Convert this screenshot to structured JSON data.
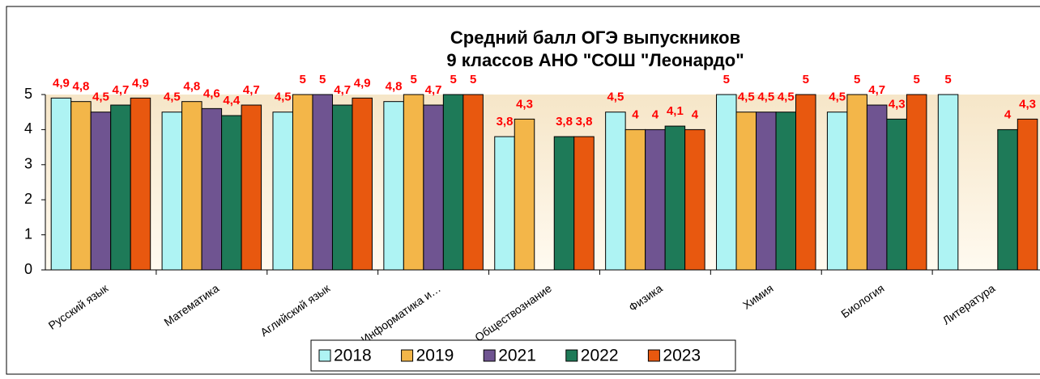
{
  "chart_data": {
    "type": "bar",
    "title": [
      "Средний балл ОГЭ выпускников",
      "9 классов АНО \"СОШ \"Леонардо\""
    ],
    "categories": [
      "Русский язык",
      "Математика",
      "Аглийский язык",
      "Информатика и…",
      "Обществознание",
      "Физика",
      "Химия",
      "Биология",
      "Литература"
    ],
    "series": [
      {
        "name": "2018",
        "color": "#aef3f3",
        "values": [
          4.9,
          4.5,
          4.5,
          4.8,
          3.8,
          4.5,
          5,
          4.5,
          5
        ],
        "value_labels": [
          "4,9",
          "4,5",
          "4,5",
          "4,8",
          "3,8",
          "4,5",
          "5",
          "4,5",
          "5"
        ]
      },
      {
        "name": "2019",
        "color": "#f3b649",
        "values": [
          4.8,
          4.8,
          5,
          5,
          4.3,
          4,
          4.5,
          5,
          null
        ],
        "value_labels": [
          "4,8",
          "4,8",
          "5",
          "5",
          "4,3",
          "4",
          "4,5",
          "5",
          null
        ]
      },
      {
        "name": "2021",
        "color": "#6f5491",
        "values": [
          4.5,
          4.6,
          5,
          4.7,
          null,
          4,
          4.5,
          4.7,
          null
        ],
        "value_labels": [
          "4,5",
          "4,6",
          "5",
          "4,7",
          null,
          "4",
          "4,5",
          "4,7",
          null
        ]
      },
      {
        "name": "2022",
        "color": "#1e7a58",
        "values": [
          4.7,
          4.4,
          4.7,
          5,
          3.8,
          4.1,
          4.5,
          4.3,
          4
        ],
        "value_labels": [
          "4,7",
          "4,4",
          "4,7",
          "5",
          "3,8",
          "4,1",
          "4,5",
          "4,3",
          "4"
        ]
      },
      {
        "name": "2023",
        "color": "#e8580f",
        "values": [
          4.9,
          4.7,
          4.9,
          5,
          3.8,
          4,
          5,
          5,
          4.3
        ],
        "value_labels": [
          "4,9",
          "4,7",
          "4,9",
          "5",
          "3,8",
          "4",
          "5",
          "5",
          "4,3"
        ]
      }
    ],
    "ylim": [
      0,
      5
    ],
    "yticks": [
      0,
      1,
      2,
      3,
      4,
      5
    ],
    "legend": "bottom",
    "label_color": "#ff0000"
  }
}
